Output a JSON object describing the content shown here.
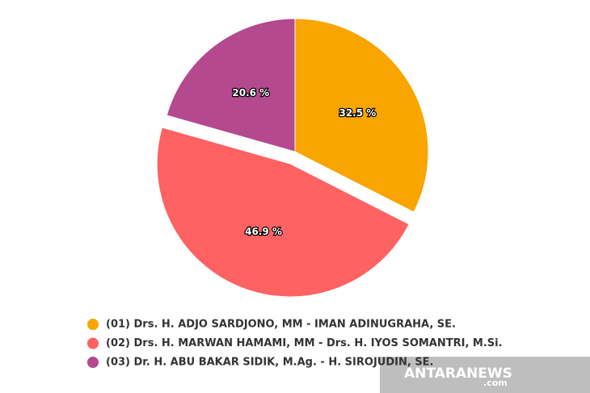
{
  "chart_data": {
    "type": "pie",
    "categories": [
      "(01) Drs. H. ADJO SARDJONO, MM - IMAN ADINUGRAHA, SE.",
      "(02) Drs. H. MARWAN HAMAMI, MM - Drs. H. IYOS SOMANTRI, M.Si.",
      "(03) Dr. H. ABU BAKAR SIDIK, M.Ag. - H. SIROJUDIN, SE."
    ],
    "values": [
      32.5,
      46.9,
      20.6
    ],
    "value_labels": [
      "32.5 %",
      "46.9 %",
      "20.6 %"
    ],
    "colors": [
      "#f8a500",
      "#fe6262",
      "#b5498f"
    ],
    "exploded": [
      false,
      true,
      false
    ],
    "watermark": "ANTARANEWS",
    "watermark_suffix": ".com"
  }
}
